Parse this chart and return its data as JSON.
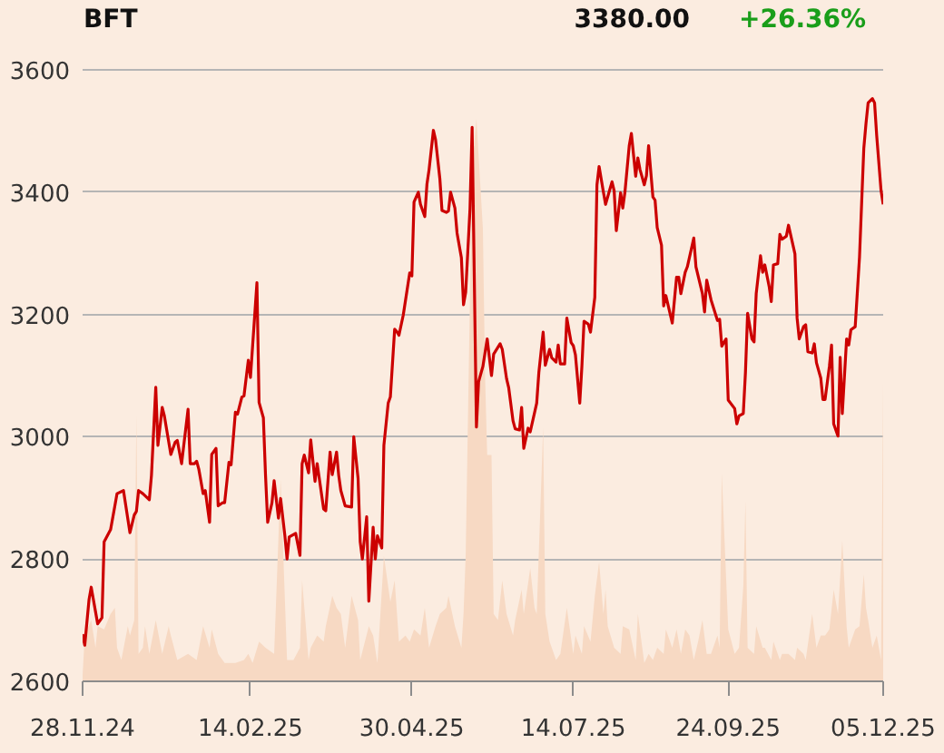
{
  "chart_data": {
    "type": "line",
    "title": "BFT",
    "annotations": [
      "3380.00",
      "+26.36%"
    ],
    "xlim": [
      "2024-11-28",
      "2025-12-05"
    ],
    "xticks": [
      {
        "value": "2024-11-28",
        "label": "28.11.24"
      },
      {
        "value": "2025-02-14",
        "label": "14.02.25"
      },
      {
        "value": "2025-04-30",
        "label": "30.04.25"
      },
      {
        "value": "2025-07-14",
        "label": "14.07.25"
      },
      {
        "value": "2025-09-24",
        "label": "24.09.25"
      },
      {
        "value": "2025-12-05",
        "label": "05.12.25"
      }
    ],
    "ylim": [
      2600,
      3600
    ],
    "yticks": [
      2600,
      2800,
      3000,
      3200,
      3400,
      3600
    ],
    "grid": "y",
    "series": [
      {
        "type": "area",
        "color": "#f7d9c3",
        "x": [
          "2024-11-28",
          "2024-11-29",
          "2024-12-02",
          "2024-12-04",
          "2024-12-05",
          "2024-12-08",
          "2024-12-11",
          "2024-12-13",
          "2024-12-14",
          "2024-12-16",
          "2024-12-19",
          "2024-12-20",
          "2024-12-22",
          "2024-12-23",
          "2024-12-24",
          "2024-12-26",
          "2024-12-27",
          "2024-12-29",
          "2025-01-01",
          "2025-01-04",
          "2025-01-07",
          "2025-01-08",
          "2025-01-11",
          "2025-01-16",
          "2025-01-20",
          "2025-01-23",
          "2025-01-26",
          "2025-01-27",
          "2025-01-30",
          "2025-02-02",
          "2025-02-07",
          "2025-02-11",
          "2025-02-13",
          "2025-02-15",
          "2025-02-18",
          "2025-02-21",
          "2025-02-25",
          "2025-02-28",
          "2025-03-03",
          "2025-03-06",
          "2025-03-09",
          "2025-03-10",
          "2025-03-13",
          "2025-03-14",
          "2025-03-17",
          "2025-03-20",
          "2025-03-21",
          "2025-03-24",
          "2025-03-26",
          "2025-03-28",
          "2025-03-30",
          "2025-04-02",
          "2025-04-05",
          "2025-04-06",
          "2025-04-10",
          "2025-04-12",
          "2025-04-14",
          "2025-04-17",
          "2025-04-20",
          "2025-04-22",
          "2025-04-24",
          "2025-04-27",
          "2025-04-29",
          "2025-05-01",
          "2025-05-04",
          "2025-05-06",
          "2025-05-08",
          "2025-05-11",
          "2025-05-13",
          "2025-05-16",
          "2025-05-17",
          "2025-05-20",
          "2025-05-23",
          "2025-05-24",
          "2025-05-25",
          "2025-05-28",
          "2025-05-30",
          "2025-06-02",
          "2025-06-03",
          "2025-06-04",
          "2025-06-06",
          "2025-06-07",
          "2025-06-09",
          "2025-06-11",
          "2025-06-13",
          "2025-06-16",
          "2025-06-17",
          "2025-06-20",
          "2025-06-21",
          "2025-06-24",
          "2025-06-26",
          "2025-06-27",
          "2025-06-30",
          "2025-07-01",
          "2025-07-03",
          "2025-07-06",
          "2025-07-08",
          "2025-07-11",
          "2025-07-14",
          "2025-07-15",
          "2025-07-18",
          "2025-07-19",
          "2025-07-22",
          "2025-07-24",
          "2025-07-26",
          "2025-07-28",
          "2025-07-29",
          "2025-07-30",
          "2025-08-02",
          "2025-08-05",
          "2025-08-06",
          "2025-08-09",
          "2025-08-12",
          "2025-08-13",
          "2025-08-16",
          "2025-08-18",
          "2025-08-20",
          "2025-08-22",
          "2025-08-25",
          "2025-08-26",
          "2025-08-29",
          "2025-08-31",
          "2025-09-02",
          "2025-09-04",
          "2025-09-06",
          "2025-09-08",
          "2025-09-10",
          "2025-09-12",
          "2025-09-14",
          "2025-09-16",
          "2025-09-19",
          "2025-09-20",
          "2025-09-21",
          "2025-09-24",
          "2025-09-27",
          "2025-09-29",
          "2025-10-01",
          "2025-10-02",
          "2025-10-03",
          "2025-10-06",
          "2025-10-07",
          "2025-10-10",
          "2025-10-11",
          "2025-10-14",
          "2025-10-15",
          "2025-10-18",
          "2025-10-19",
          "2025-10-22",
          "2025-10-25",
          "2025-10-26",
          "2025-10-29",
          "2025-10-30",
          "2025-11-02",
          "2025-11-04",
          "2025-11-06",
          "2025-11-08",
          "2025-11-10",
          "2025-11-12",
          "2025-11-14",
          "2025-11-16",
          "2025-11-18",
          "2025-11-19",
          "2025-11-22",
          "2025-11-24",
          "2025-11-26",
          "2025-11-27",
          "2025-11-28",
          "2025-11-30",
          "2025-12-02",
          "2025-12-04",
          "2025-12-05"
        ],
        "values": [
          2610,
          2675,
          2700,
          2655,
          2690,
          2685,
          2710,
          2720,
          2655,
          2635,
          2690,
          2675,
          2700,
          3035,
          2645,
          2655,
          2690,
          2645,
          2700,
          2645,
          2690,
          2675,
          2635,
          2645,
          2635,
          2690,
          2655,
          2685,
          2645,
          2630,
          2630,
          2635,
          2645,
          2630,
          2665,
          2655,
          2645,
          2930,
          2635,
          2635,
          2655,
          2765,
          2635,
          2655,
          2675,
          2665,
          2690,
          2740,
          2720,
          2710,
          2655,
          2740,
          2700,
          2635,
          2690,
          2675,
          2630,
          2805,
          2730,
          2765,
          2665,
          2675,
          2665,
          2685,
          2675,
          2720,
          2655,
          2690,
          2710,
          2720,
          2740,
          2690,
          2655,
          2710,
          2805,
          3440,
          3520,
          3340,
          3100,
          2970,
          2970,
          2710,
          2700,
          2765,
          2710,
          2675,
          2700,
          2750,
          2710,
          2785,
          2720,
          2710,
          3015,
          2710,
          2665,
          2635,
          2645,
          2720,
          2645,
          2675,
          2645,
          2690,
          2665,
          2740,
          2795,
          2710,
          2750,
          2690,
          2655,
          2645,
          2690,
          2685,
          2635,
          2710,
          2630,
          2645,
          2635,
          2655,
          2645,
          2685,
          2655,
          2685,
          2645,
          2685,
          2675,
          2635,
          2665,
          2700,
          2645,
          2645,
          2675,
          2655,
          2940,
          2685,
          2645,
          2655,
          2755,
          2895,
          2655,
          2645,
          2690,
          2655,
          2655,
          2635,
          2665,
          2635,
          2645,
          2645,
          2635,
          2655,
          2645,
          2635,
          2710,
          2655,
          2675,
          2675,
          2685,
          2750,
          2710,
          2830,
          2690,
          2655,
          2685,
          2690,
          2775,
          2720,
          2700,
          2655,
          2675,
          2635,
          3090
        ]
      },
      {
        "color": "#cc0000",
        "x": [
          "2024-11-28",
          "2024-11-29",
          "2024-12-01",
          "2024-12-02",
          "2024-12-05",
          "2024-12-07",
          "2024-12-08",
          "2024-12-11",
          "2024-12-13",
          "2024-12-14",
          "2024-12-17",
          "2024-12-20",
          "2024-12-22",
          "2024-12-23",
          "2024-12-24",
          "2024-12-26",
          "2024-12-29",
          "2024-12-30",
          "2025-01-01",
          "2025-01-02",
          "2025-01-04",
          "2025-01-05",
          "2025-01-08",
          "2025-01-10",
          "2025-01-11",
          "2025-01-13",
          "2025-01-16",
          "2025-01-17",
          "2025-01-19",
          "2025-01-20",
          "2025-01-21",
          "2025-01-23",
          "2025-01-24",
          "2025-01-26",
          "2025-01-27",
          "2025-01-29",
          "2025-01-30",
          "2025-02-01",
          "2025-02-02",
          "2025-02-04",
          "2025-02-05",
          "2025-02-07",
          "2025-02-08",
          "2025-02-10",
          "2025-02-11",
          "2025-02-13",
          "2025-02-14",
          "2025-02-17",
          "2025-02-18",
          "2025-02-20",
          "2025-02-21",
          "2025-02-22",
          "2025-02-24",
          "2025-02-25",
          "2025-02-27",
          "2025-02-28",
          "2025-03-02",
          "2025-03-03",
          "2025-03-04",
          "2025-03-07",
          "2025-03-09",
          "2025-03-10",
          "2025-03-11",
          "2025-03-13",
          "2025-03-14",
          "2025-03-16",
          "2025-03-17",
          "2025-03-20",
          "2025-03-21",
          "2025-03-23",
          "2025-03-24",
          "2025-03-26",
          "2025-03-27",
          "2025-03-28",
          "2025-03-30",
          "2025-04-02",
          "2025-04-03",
          "2025-04-05",
          "2025-04-06",
          "2025-04-07",
          "2025-04-09",
          "2025-04-10",
          "2025-04-12",
          "2025-04-13",
          "2025-04-14",
          "2025-04-16",
          "2025-04-17",
          "2025-04-19",
          "2025-04-20",
          "2025-04-22",
          "2025-04-23",
          "2025-04-24",
          "2025-04-26",
          "2025-04-29",
          "2025-04-30",
          "2025-05-01",
          "2025-05-03",
          "2025-05-04",
          "2025-05-06",
          "2025-05-07",
          "2025-05-08",
          "2025-05-10",
          "2025-05-11",
          "2025-05-13",
          "2025-05-14",
          "2025-05-16",
          "2025-05-17",
          "2025-05-18",
          "2025-05-20",
          "2025-05-21",
          "2025-05-23",
          "2025-05-24",
          "2025-05-25",
          "2025-05-27",
          "2025-05-28",
          "2025-05-30",
          "2025-05-31",
          "2025-06-02",
          "2025-06-04",
          "2025-06-06",
          "2025-06-07",
          "2025-06-10",
          "2025-06-11",
          "2025-06-13",
          "2025-06-14",
          "2025-06-16",
          "2025-06-17",
          "2025-06-19",
          "2025-06-20",
          "2025-06-21",
          "2025-06-23",
          "2025-06-24",
          "2025-06-27",
          "2025-06-28",
          "2025-06-30",
          "2025-07-01",
          "2025-07-03",
          "2025-07-04",
          "2025-07-06",
          "2025-07-07",
          "2025-07-08",
          "2025-07-10",
          "2025-07-11",
          "2025-07-13",
          "2025-07-14",
          "2025-07-15",
          "2025-07-17",
          "2025-07-18",
          "2025-07-19",
          "2025-07-21",
          "2025-07-22",
          "2025-07-24",
          "2025-07-25",
          "2025-07-26",
          "2025-07-28",
          "2025-07-29",
          "2025-08-01",
          "2025-08-02",
          "2025-08-03",
          "2025-08-05",
          "2025-08-06",
          "2025-08-07",
          "2025-08-09",
          "2025-08-10",
          "2025-08-12",
          "2025-08-13",
          "2025-08-14",
          "2025-08-16",
          "2025-08-17",
          "2025-08-18",
          "2025-08-20",
          "2025-08-21",
          "2025-08-22",
          "2025-08-24",
          "2025-08-25",
          "2025-08-26",
          "2025-08-29",
          "2025-08-31",
          "2025-09-01",
          "2025-09-02",
          "2025-09-04",
          "2025-09-05",
          "2025-09-08",
          "2025-09-09",
          "2025-09-12",
          "2025-09-13",
          "2025-09-14",
          "2025-09-16",
          "2025-09-19",
          "2025-09-20",
          "2025-09-21",
          "2025-09-23",
          "2025-09-24",
          "2025-09-27",
          "2025-09-28",
          "2025-09-29",
          "2025-10-01",
          "2025-10-02",
          "2025-10-03",
          "2025-10-05",
          "2025-10-06",
          "2025-10-07",
          "2025-10-09",
          "2025-10-10",
          "2025-10-11",
          "2025-10-13",
          "2025-10-14",
          "2025-10-15",
          "2025-10-17",
          "2025-10-18",
          "2025-10-19",
          "2025-10-21",
          "2025-10-22",
          "2025-10-25",
          "2025-10-26",
          "2025-10-27",
          "2025-10-29",
          "2025-10-30",
          "2025-10-31",
          "2025-11-02",
          "2025-11-03",
          "2025-11-04",
          "2025-11-06",
          "2025-11-07",
          "2025-11-08",
          "2025-11-10",
          "2025-11-11",
          "2025-11-12",
          "2025-11-14",
          "2025-11-15",
          "2025-11-16",
          "2025-11-18",
          "2025-11-19",
          "2025-11-20",
          "2025-11-22",
          "2025-11-24",
          "2025-11-26",
          "2025-11-27",
          "2025-11-28",
          "2025-11-30",
          "2025-12-01",
          "2025-12-02",
          "2025-12-04",
          "2025-12-05"
        ],
        "values": [
          2677,
          2659,
          2734,
          2754,
          2694,
          2704,
          2828,
          2848,
          2887,
          2907,
          2912,
          2843,
          2872,
          2878,
          2912,
          2907,
          2897,
          2937,
          3081,
          2986,
          3048,
          3034,
          2971,
          2991,
          2994,
          2956,
          3045,
          2956,
          2956,
          2960,
          2947,
          2907,
          2912,
          2860,
          2971,
          2981,
          2887,
          2892,
          2892,
          2958,
          2954,
          3040,
          3037,
          3065,
          3067,
          3125,
          3097,
          3252,
          3056,
          3031,
          2937,
          2860,
          2892,
          2928,
          2867,
          2899,
          2838,
          2800,
          2836,
          2842,
          2806,
          2956,
          2970,
          2941,
          2995,
          2927,
          2956,
          2882,
          2879,
          2975,
          2938,
          2975,
          2937,
          2912,
          2887,
          2885,
          3000,
          2932,
          2828,
          2800,
          2869,
          2731,
          2852,
          2800,
          2838,
          2818,
          2986,
          3055,
          3065,
          3176,
          3172,
          3166,
          3199,
          3268,
          3263,
          3384,
          3400,
          3380,
          3360,
          3413,
          3437,
          3501,
          3486,
          3422,
          3370,
          3367,
          3369,
          3400,
          3374,
          3333,
          3293,
          3216,
          3236,
          3372,
          3506,
          3016,
          3090,
          3115,
          3160,
          3100,
          3135,
          3152,
          3143,
          3095,
          3080,
          3026,
          3013,
          3011,
          3048,
          2981,
          3014,
          3008,
          3055,
          3105,
          3171,
          3117,
          3143,
          3129,
          3122,
          3150,
          3119,
          3119,
          3194,
          3154,
          3149,
          3134,
          3055,
          3115,
          3189,
          3184,
          3171,
          3228,
          3412,
          3442,
          3400,
          3380,
          3417,
          3402,
          3337,
          3399,
          3374,
          3400,
          3476,
          3496,
          3426,
          3456,
          3437,
          3412,
          3427,
          3476,
          3392,
          3387,
          3342,
          3313,
          3214,
          3231,
          3186,
          3261,
          3261,
          3234,
          3269,
          3278,
          3325,
          3278,
          3234,
          3204,
          3256,
          3224,
          3190,
          3192,
          3148,
          3160,
          3060,
          3046,
          3021,
          3034,
          3038,
          3105,
          3202,
          3160,
          3155,
          3234,
          3296,
          3269,
          3281,
          3246,
          3221,
          3281,
          3283,
          3331,
          3323,
          3328,
          3346,
          3299,
          3194,
          3160,
          3180,
          3183,
          3139,
          3137,
          3152,
          3121,
          3096,
          3061,
          3061,
          3115,
          3150,
          3021,
          3001,
          3130,
          3038,
          3160,
          3150,
          3175,
          3180,
          3294,
          3472,
          3512,
          3546,
          3553,
          3546,
          3492,
          3403,
          3380
        ]
      }
    ]
  }
}
